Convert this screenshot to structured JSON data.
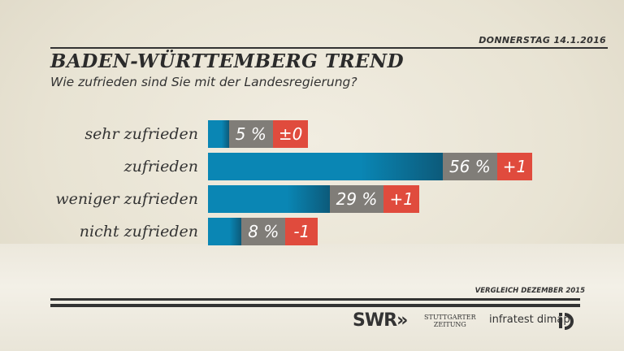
{
  "header": {
    "date": "DONNERSTAG 14.1.2016",
    "title": "BADEN-WÜRTTEMBERG TREND",
    "subtitle": "Wie zufrieden sind Sie mit der Landesregierung?"
  },
  "chart_data": {
    "type": "bar",
    "orientation": "horizontal",
    "categories": [
      "sehr zufrieden",
      "zufrieden",
      "weniger zufrieden",
      "nicht zufrieden"
    ],
    "values": [
      5,
      56,
      29,
      8
    ],
    "value_labels": [
      "5 %",
      "56 %",
      "29 %",
      "8 %"
    ],
    "change_labels": [
      "±0",
      "+1",
      "+1",
      "-1"
    ],
    "changes": [
      0,
      1,
      1,
      -1
    ],
    "colors": {
      "bar": "#0a86b4",
      "value_box": "#807d78",
      "change_box": "#e04b3d"
    }
  },
  "footer": {
    "note": "VERGLEICH DEZEMBER 2015",
    "logos": {
      "swr": "SWR",
      "stuttgarter": "STUTTGARTER",
      "zeitung": "ZEITUNG",
      "infratest": "infratest dimap"
    }
  }
}
